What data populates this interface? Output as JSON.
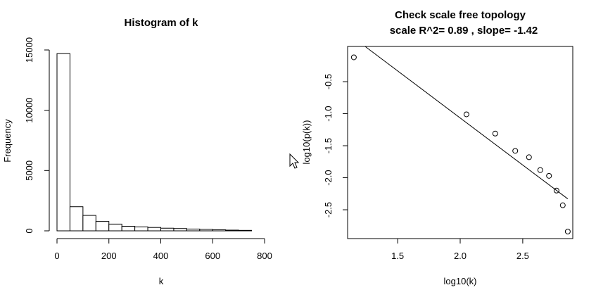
{
  "chart_data": [
    {
      "type": "bar",
      "title": "Histogram of k",
      "xlabel": "k",
      "ylabel": "Frequency",
      "xlim": [
        0,
        800
      ],
      "ylim": [
        0,
        15000
      ],
      "x_ticks": [
        "0",
        "200",
        "400",
        "600",
        "800"
      ],
      "y_ticks": [
        "0",
        "5000",
        "10000",
        "15000"
      ],
      "bin_edges": [
        0,
        50,
        100,
        150,
        200,
        250,
        300,
        350,
        400,
        450,
        500,
        550,
        600,
        650,
        700,
        750
      ],
      "values": [
        14700,
        2000,
        1280,
        780,
        560,
        380,
        330,
        280,
        220,
        190,
        150,
        120,
        90,
        60,
        40
      ]
    },
    {
      "type": "scatter",
      "title": "Check scale free topology",
      "subtitle": "scale R^2= 0.89 , slope= -1.42",
      "xlabel": "log10(k)",
      "ylabel": "log10(p(k))",
      "xlim": [
        1.1,
        2.9
      ],
      "ylim": [
        -2.95,
        0.05
      ],
      "x_ticks": [
        "1.5",
        "2.0",
        "2.5"
      ],
      "y_ticks": [
        "-0.5",
        "-1.0",
        "-1.5",
        "-2.0",
        "-2.5"
      ],
      "points": [
        {
          "x": 1.15,
          "y": -0.12
        },
        {
          "x": 2.05,
          "y": -1.01
        },
        {
          "x": 2.28,
          "y": -1.31
        },
        {
          "x": 2.44,
          "y": -1.58
        },
        {
          "x": 2.55,
          "y": -1.68
        },
        {
          "x": 2.64,
          "y": -1.88
        },
        {
          "x": 2.71,
          "y": -1.97
        },
        {
          "x": 2.77,
          "y": -2.2
        },
        {
          "x": 2.82,
          "y": -2.43
        },
        {
          "x": 2.86,
          "y": -2.84
        }
      ],
      "fit_line": {
        "x0": 1.24,
        "y0": 0.05,
        "x1": 2.86,
        "y1": -2.33
      }
    }
  ],
  "icons": {
    "cursor": "arrow-cursor-icon"
  }
}
